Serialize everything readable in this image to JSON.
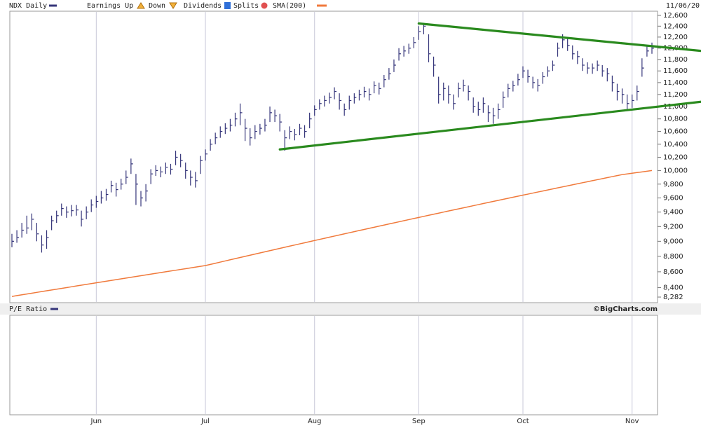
{
  "chart_data": {
    "type": "ohlc",
    "title": "NDX Daily",
    "date": "11/06/20",
    "legend_items": [
      "Earnings Up",
      "Down",
      "Dividends",
      "Splits"
    ],
    "lower_panel_title": "P/E Ratio",
    "credit": "©BigCharts.com",
    "log_scale": true,
    "categories": [
      null,
      null,
      null,
      null,
      null,
      null,
      null,
      null,
      null,
      null,
      null,
      null,
      null,
      null,
      null,
      null,
      null,
      "Jun",
      null,
      null,
      null,
      null,
      null,
      null,
      null,
      null,
      null,
      null,
      null,
      null,
      null,
      null,
      null,
      null,
      null,
      null,
      null,
      null,
      null,
      "Jul",
      null,
      null,
      null,
      null,
      null,
      null,
      null,
      null,
      null,
      null,
      null,
      null,
      null,
      null,
      null,
      null,
      null,
      null,
      null,
      null,
      null,
      "Aug",
      null,
      null,
      null,
      null,
      null,
      null,
      null,
      null,
      null,
      null,
      null,
      null,
      null,
      null,
      null,
      null,
      null,
      null,
      null,
      null,
      "Sep",
      null,
      null,
      null,
      null,
      null,
      null,
      null,
      null,
      null,
      null,
      null,
      null,
      null,
      null,
      null,
      null,
      null,
      null,
      null,
      null,
      "Oct",
      null,
      null,
      null,
      null,
      null,
      null,
      null,
      null,
      null,
      null,
      null,
      null,
      null,
      null,
      null,
      null,
      null,
      null,
      null,
      null,
      null,
      "Nov",
      null,
      null,
      null,
      null
    ],
    "series": [
      {
        "name": "NDX Daily",
        "color": "#35357a",
        "high": [
          9100,
          9150,
          9250,
          9350,
          9380,
          9250,
          9080,
          9150,
          9350,
          9420,
          9520,
          9480,
          9500,
          9500,
          9420,
          9480,
          9580,
          9630,
          9700,
          9730,
          9850,
          9820,
          9880,
          10000,
          10180,
          9950,
          9700,
          9800,
          10020,
          10080,
          10060,
          10120,
          10100,
          10300,
          10250,
          10120,
          10000,
          9980,
          10220,
          10320,
          10480,
          10580,
          10680,
          10730,
          10800,
          10900,
          11050,
          10800,
          10650,
          10700,
          10720,
          10800,
          11000,
          10950,
          10880,
          10620,
          10680,
          10640,
          10720,
          10700,
          10900,
          11020,
          11120,
          11180,
          11230,
          11320,
          11220,
          11050,
          11180,
          11220,
          11280,
          11330,
          11300,
          11420,
          11400,
          11530,
          11650,
          11800,
          12000,
          12040,
          12080,
          12200,
          12400,
          12460,
          12250,
          11850,
          11500,
          11400,
          11350,
          11200,
          11400,
          11450,
          11350,
          11150,
          11080,
          11150,
          11020,
          10980,
          11050,
          11250,
          11380,
          11430,
          11550,
          11680,
          11620,
          11500,
          11460,
          11580,
          11680,
          11780,
          12100,
          12250,
          12180,
          12050,
          11950,
          11820,
          11750,
          11730,
          11780,
          11700,
          11650,
          11520,
          11380,
          11300,
          11200,
          11200,
          11350,
          11820,
          12050,
          12100
        ],
        "low": [
          8920,
          8980,
          9050,
          9100,
          9150,
          9000,
          8850,
          8900,
          9150,
          9250,
          9350,
          9320,
          9340,
          9350,
          9200,
          9300,
          9400,
          9460,
          9520,
          9560,
          9680,
          9620,
          9720,
          9800,
          9950,
          9500,
          9480,
          9550,
          9800,
          9920,
          9900,
          9950,
          9940,
          10080,
          10050,
          9880,
          9780,
          9750,
          9950,
          10150,
          10300,
          10400,
          10500,
          10560,
          10600,
          10680,
          10700,
          10450,
          10380,
          10480,
          10550,
          10600,
          10750,
          10750,
          10600,
          10300,
          10480,
          10460,
          10540,
          10500,
          10650,
          10850,
          10950,
          11000,
          11050,
          11120,
          10950,
          10850,
          10950,
          11050,
          11100,
          11150,
          11100,
          11220,
          11200,
          11320,
          11450,
          11580,
          11780,
          11850,
          11900,
          12000,
          12150,
          12250,
          11750,
          11500,
          11050,
          11100,
          11050,
          10950,
          11150,
          11250,
          11100,
          10900,
          10850,
          10900,
          10750,
          10720,
          10800,
          10980,
          11150,
          11250,
          11350,
          11480,
          11400,
          11300,
          11250,
          11380,
          11500,
          11600,
          11850,
          12000,
          11950,
          11800,
          11720,
          11600,
          11550,
          11550,
          11600,
          11500,
          11420,
          11250,
          11100,
          11050,
          10950,
          10980,
          11100,
          11500,
          11850,
          11900
        ],
        "close": [
          9000,
          9050,
          9150,
          9180,
          9300,
          9100,
          8950,
          9050,
          9280,
          9350,
          9450,
          9400,
          9420,
          9430,
          9300,
          9400,
          9500,
          9550,
          9600,
          9650,
          9780,
          9720,
          9800,
          9900,
          10100,
          9800,
          9600,
          9700,
          9950,
          10000,
          9980,
          10050,
          10020,
          10200,
          10150,
          10000,
          9900,
          9850,
          10150,
          10250,
          10400,
          10500,
          10600,
          10650,
          10700,
          10800,
          10900,
          10650,
          10500,
          10600,
          10650,
          10700,
          10900,
          10850,
          10750,
          10500,
          10600,
          10550,
          10650,
          10600,
          10800,
          10950,
          11050,
          11100,
          11150,
          11250,
          11100,
          10950,
          11100,
          11150,
          11200,
          11250,
          11200,
          11350,
          11300,
          11450,
          11550,
          11700,
          11900,
          11950,
          12000,
          12100,
          12300,
          12400,
          11900,
          11700,
          11200,
          11300,
          11200,
          11050,
          11300,
          11350,
          11250,
          11000,
          10950,
          11050,
          10900,
          10850,
          10950,
          11150,
          11300,
          11350,
          11450,
          11600,
          11500,
          11400,
          11350,
          11500,
          11600,
          11700,
          12000,
          12150,
          12050,
          11900,
          11850,
          11700,
          11650,
          11650,
          11700,
          11600,
          11550,
          11400,
          11250,
          11200,
          11050,
          11100,
          11250,
          11650,
          11950,
          12000
        ]
      },
      {
        "name": "SMA(200)",
        "color": "#f07a3c",
        "values": [
          8290,
          8300,
          8310,
          8320,
          8330,
          8340,
          8350,
          8360,
          8370,
          8380,
          8390,
          8400,
          8410,
          8420,
          8430,
          8440,
          8450,
          8460,
          8470,
          8480,
          8490,
          8500,
          8510,
          8520,
          8530,
          8540,
          8550,
          8560,
          8570,
          8580,
          8590,
          8600,
          8610,
          8620,
          8630,
          8640,
          8650,
          8660,
          8670,
          8680,
          8695,
          8710,
          8725,
          8740,
          8755,
          8770,
          8785,
          8800,
          8815,
          8830,
          8845,
          8860,
          8875,
          8890,
          8905,
          8920,
          8935,
          8950,
          8965,
          8980,
          8995,
          9010,
          9025,
          9040,
          9055,
          9070,
          9085,
          9100,
          9115,
          9130,
          9145,
          9160,
          9175,
          9190,
          9205,
          9220,
          9235,
          9250,
          9265,
          9280,
          9295,
          9310,
          9325,
          9340,
          9355,
          9370,
          9385,
          9400,
          9415,
          9430,
          9445,
          9460,
          9475,
          9490,
          9505,
          9520,
          9535,
          9550,
          9565,
          9580,
          9595,
          9610,
          9625,
          9640,
          9655,
          9670,
          9685,
          9700,
          9715,
          9730,
          9745,
          9760,
          9775,
          9790,
          9805,
          9820,
          9835,
          9850,
          9865,
          9880,
          9895,
          9910,
          9925,
          9940,
          9950,
          9960,
          9970,
          9980,
          9990,
          10000
        ]
      }
    ],
    "trendlines": [
      {
        "color": "#2a8a1e",
        "x": [
          82,
          139
        ],
        "y": [
          12450,
          11950
        ]
      },
      {
        "color": "#2a8a1e",
        "x": [
          54,
          139
        ],
        "y": [
          10320,
          11080
        ]
      }
    ],
    "ylim": [
      8282,
      12600
    ],
    "yticks": [
      {
        "value": 12600,
        "label": "12,600"
      },
      {
        "value": 12400,
        "label": "12,400"
      },
      {
        "value": 12200,
        "label": "12,200"
      },
      {
        "value": 12000,
        "label": "12,000"
      },
      {
        "value": 11800,
        "label": "11,800"
      },
      {
        "value": 11600,
        "label": "11,600"
      },
      {
        "value": 11400,
        "label": "11,400"
      },
      {
        "value": 11200,
        "label": "11,200"
      },
      {
        "value": 11000,
        "label": "11,000"
      },
      {
        "value": 10800,
        "label": "10,800"
      },
      {
        "value": 10600,
        "label": "10,600"
      },
      {
        "value": 10400,
        "label": "10,400"
      },
      {
        "value": 10200,
        "label": "10,200"
      },
      {
        "value": 10000,
        "label": "10,000"
      },
      {
        "value": 9800,
        "label": "9,800"
      },
      {
        "value": 9600,
        "label": "9,600"
      },
      {
        "value": 9400,
        "label": "9,400"
      },
      {
        "value": 9200,
        "label": "9,200"
      },
      {
        "value": 9000,
        "label": "9,000"
      },
      {
        "value": 8800,
        "label": "8,800"
      },
      {
        "value": 8600,
        "label": "8,600"
      },
      {
        "value": 8400,
        "label": "8,400"
      },
      {
        "value": 8282,
        "label": "8,282"
      }
    ]
  }
}
